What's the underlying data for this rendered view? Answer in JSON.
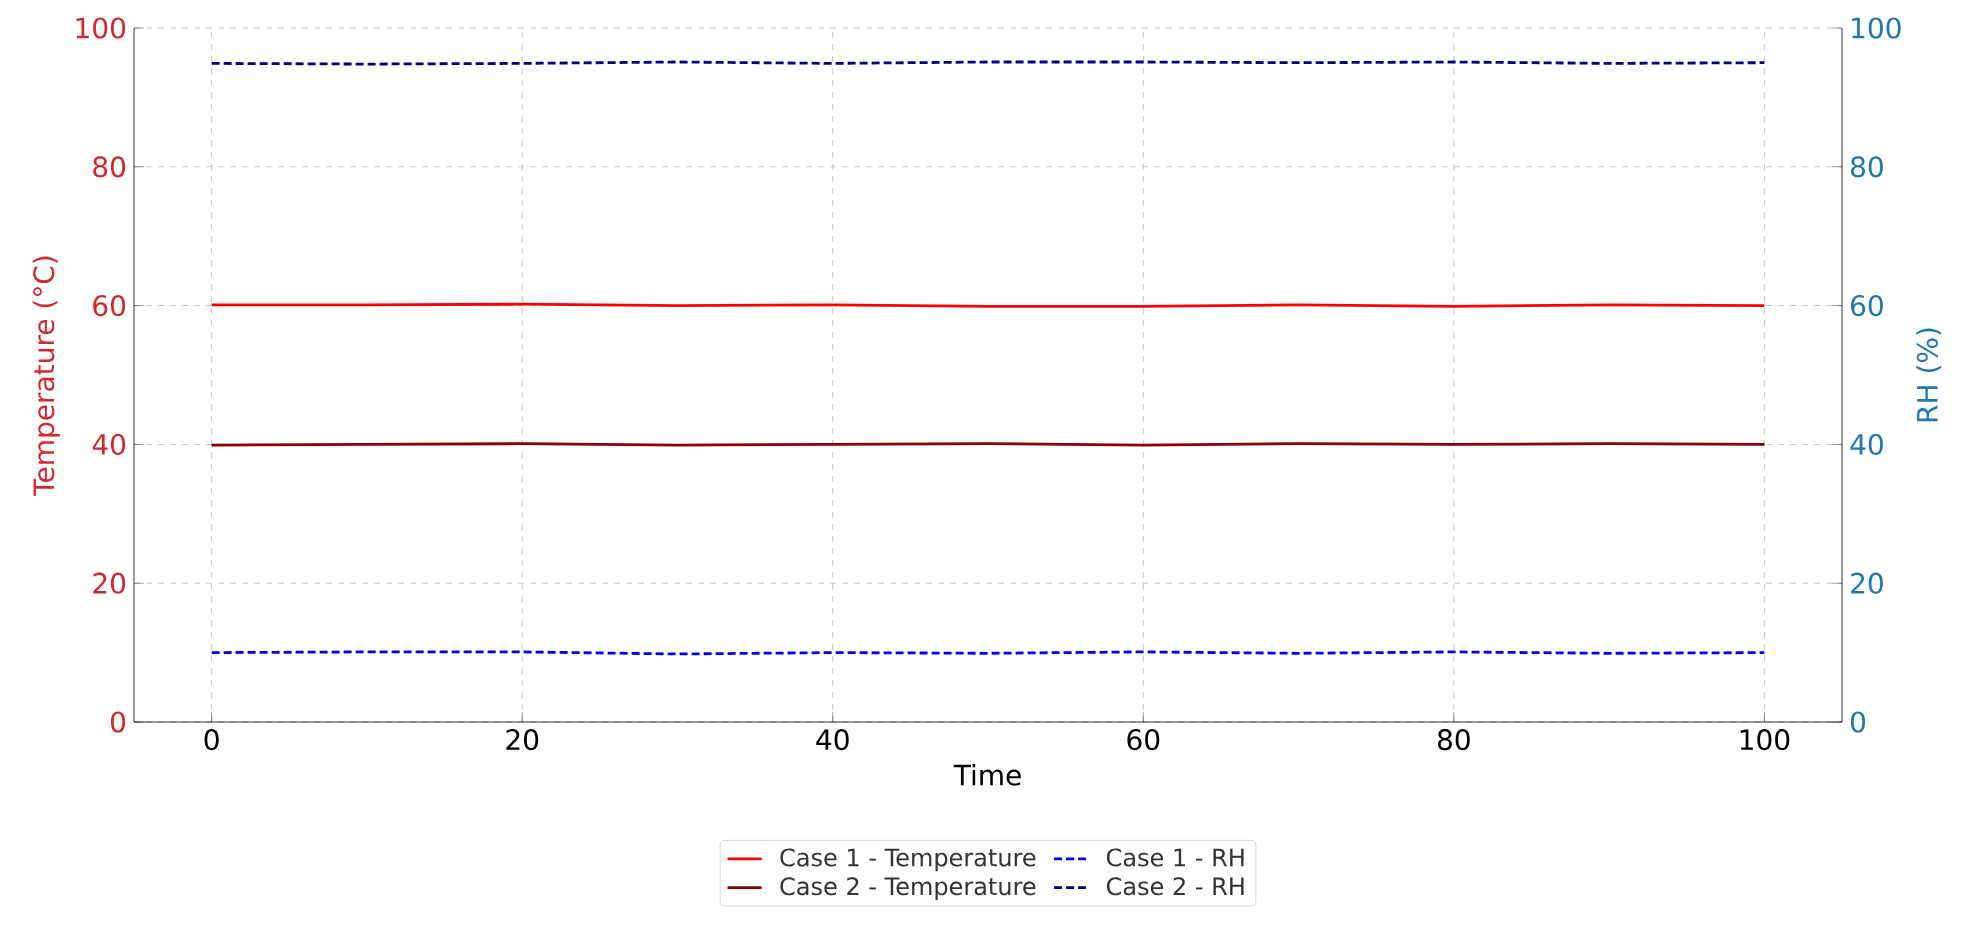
{
  "chart_data": {
    "type": "line",
    "xlabel": "Time",
    "ylabel": "Temperature (°C)",
    "y2label": "RH (%)",
    "x": [
      0,
      10,
      20,
      30,
      40,
      50,
      60,
      70,
      80,
      90,
      100
    ],
    "xlim": [
      -5,
      105
    ],
    "xticks": [
      0,
      20,
      40,
      60,
      80,
      100
    ],
    "ylim": [
      0,
      100
    ],
    "yticks": [
      0,
      20,
      40,
      60,
      80,
      100
    ],
    "y2lim": [
      0,
      100
    ],
    "y2ticks": [
      0,
      20,
      40,
      60,
      80,
      100
    ],
    "grid": true,
    "legend": "bottom",
    "series": [
      {
        "name": "Case 1 - Temperature",
        "color": "#ff0000",
        "line_style": "solid",
        "values": [
          60.1,
          60.1,
          60.2,
          60.0,
          60.1,
          59.9,
          59.9,
          60.1,
          59.9,
          60.1,
          60.0
        ]
      },
      {
        "name": "Case 2 - Temperature",
        "color": "#8b0000",
        "line_style": "solid",
        "values": [
          39.9,
          40.0,
          40.1,
          39.9,
          40.0,
          40.1,
          39.9,
          40.1,
          40.0,
          40.1,
          40.0
        ]
      },
      {
        "name": "Case 1 - RH",
        "color": "#0000ff",
        "line_style": "dashed",
        "axis": "y2",
        "values": [
          10.0,
          10.1,
          10.1,
          9.8,
          10.0,
          9.9,
          10.1,
          9.9,
          10.1,
          9.9,
          10.0
        ]
      },
      {
        "name": "Case 2 - RH",
        "color": "#00008b",
        "line_style": "dashed",
        "axis": "y2",
        "values": [
          94.9,
          94.8,
          94.9,
          95.1,
          94.9,
          95.1,
          95.1,
          95.0,
          95.1,
          94.9,
          95.0
        ]
      }
    ]
  }
}
